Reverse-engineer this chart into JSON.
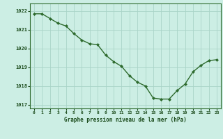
{
  "x": [
    0,
    1,
    2,
    3,
    4,
    5,
    6,
    7,
    8,
    9,
    10,
    11,
    12,
    13,
    14,
    15,
    16,
    17,
    18,
    19,
    20,
    21,
    22,
    23
  ],
  "y": [
    1021.85,
    1021.85,
    1021.6,
    1021.35,
    1021.2,
    1020.8,
    1020.45,
    1020.25,
    1020.2,
    1019.65,
    1019.3,
    1019.05,
    1018.55,
    1018.2,
    1018.0,
    1017.35,
    1017.3,
    1017.3,
    1017.75,
    1018.1,
    1018.75,
    1019.1,
    1019.35,
    1019.4
  ],
  "ylim": [
    1016.8,
    1022.4
  ],
  "yticks": [
    1017,
    1018,
    1019,
    1020,
    1021,
    1022
  ],
  "xticks": [
    0,
    1,
    2,
    3,
    4,
    5,
    6,
    7,
    8,
    9,
    10,
    11,
    12,
    13,
    14,
    15,
    16,
    17,
    18,
    19,
    20,
    21,
    22,
    23
  ],
  "line_color": "#2d6a2d",
  "marker_color": "#2d6a2d",
  "bg_color": "#cceee4",
  "grid_color": "#aad4c8",
  "xlabel": "Graphe pression niveau de la mer (hPa)",
  "xlabel_color": "#1a4a1a",
  "tick_color": "#1a4a1a",
  "spine_color": "#2d6a2d",
  "marker": "D",
  "markersize": 2.0,
  "linewidth": 1.0
}
